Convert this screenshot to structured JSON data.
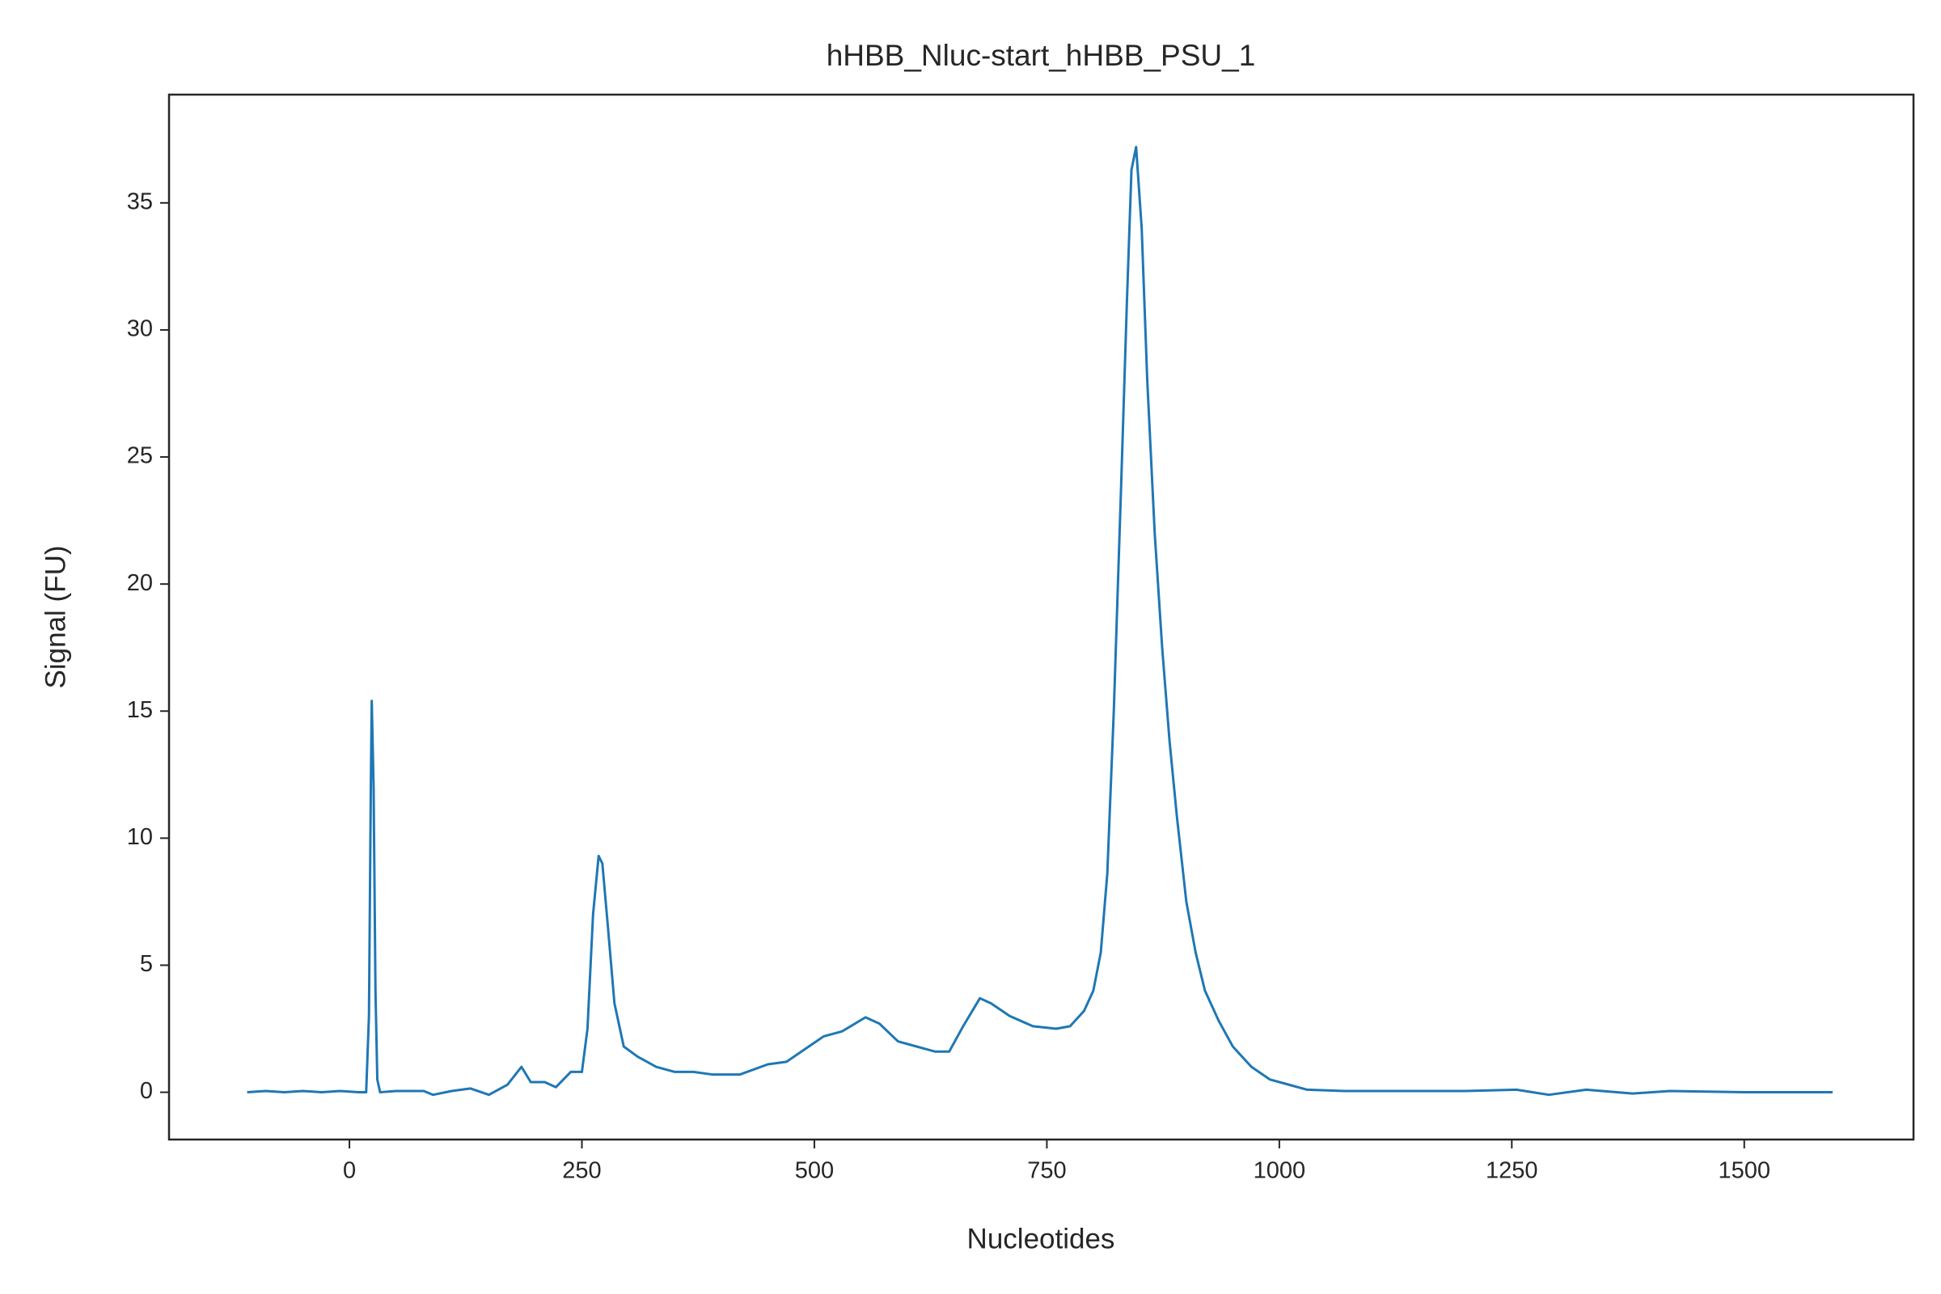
{
  "chart_data": {
    "type": "line",
    "title": "hHBB_Nluc-start_hHBB_PSU_1",
    "x_label": "Nucleotides",
    "y_label": "Signal (FU)",
    "x": [
      -110,
      -90,
      -70,
      -50,
      -30,
      -10,
      10,
      18,
      21,
      23,
      24,
      26,
      28,
      30,
      33,
      50,
      80,
      90,
      110,
      130,
      150,
      170,
      185,
      195,
      210,
      222,
      238,
      250,
      256,
      262,
      268,
      272,
      278,
      285,
      295,
      310,
      330,
      350,
      370,
      390,
      420,
      450,
      470,
      490,
      510,
      530,
      555,
      570,
      590,
      610,
      630,
      645,
      660,
      678,
      690,
      710,
      735,
      760,
      775,
      790,
      800,
      808,
      815,
      822,
      830,
      836,
      841,
      846,
      852,
      858,
      866,
      874,
      882,
      890,
      900,
      910,
      920,
      935,
      950,
      970,
      990,
      1010,
      1030,
      1070,
      1100,
      1150,
      1200,
      1255,
      1290,
      1330,
      1380,
      1420,
      1500,
      1595
    ],
    "series": [
      {
        "name": "hHBB_Nluc-start_hHBB_PSU_1",
        "color": "#1f77b4",
        "values": [
          0,
          0.05,
          0,
          0.05,
          0,
          0.05,
          0,
          0,
          3,
          12,
          15.4,
          12,
          4,
          0.5,
          0,
          0.05,
          0.05,
          -0.1,
          0.05,
          0.15,
          -0.1,
          0.3,
          1.0,
          0.4,
          0.4,
          0.2,
          0.8,
          0.8,
          2.5,
          7,
          9.3,
          9,
          6.5,
          3.5,
          1.8,
          1.4,
          1.0,
          0.8,
          0.8,
          0.7,
          0.7,
          1.1,
          1.2,
          1.7,
          2.2,
          2.4,
          2.95,
          2.7,
          2.0,
          1.8,
          1.6,
          1.6,
          2.6,
          3.7,
          3.5,
          3.0,
          2.6,
          2.5,
          2.6,
          3.2,
          4.0,
          5.5,
          8.6,
          15,
          24,
          31,
          36.3,
          37.2,
          34,
          28,
          22,
          17.5,
          13.8,
          10.8,
          7.5,
          5.5,
          4.0,
          2.8,
          1.8,
          1.0,
          0.5,
          0.3,
          0.1,
          0.05,
          0.05,
          0.05,
          0.05,
          0.1,
          -0.1,
          0.1,
          -0.05,
          0.05,
          0,
          0
        ]
      }
    ],
    "xlim": [
      -194,
      1682
    ],
    "ylim": [
      -1.86,
      39.26
    ],
    "xticks": [
      0,
      250,
      500,
      750,
      1000,
      1250,
      1500
    ],
    "yticks": [
      0,
      5,
      10,
      15,
      20,
      25,
      30,
      35
    ]
  }
}
